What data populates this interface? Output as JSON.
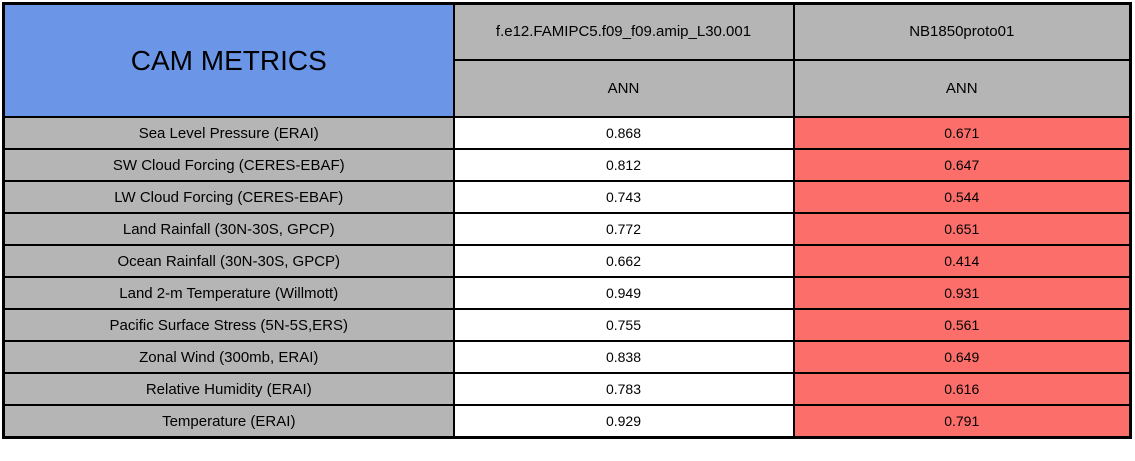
{
  "chart_data": {
    "type": "table",
    "title": "CAM METRICS",
    "column_groups": [
      {
        "run": "f.e12.FAMIPC5.f09_f09.amip_L30.001",
        "season": "ANN"
      },
      {
        "run": "NB1850proto01",
        "season": "ANN"
      }
    ],
    "rows": [
      {
        "metric": "Sea Level Pressure (ERAI)",
        "values": [
          "0.868",
          "0.671"
        ]
      },
      {
        "metric": "SW Cloud Forcing (CERES-EBAF)",
        "values": [
          "0.812",
          "0.647"
        ]
      },
      {
        "metric": "LW Cloud Forcing (CERES-EBAF)",
        "values": [
          "0.743",
          "0.544"
        ]
      },
      {
        "metric": "Land Rainfall (30N-30S, GPCP)",
        "values": [
          "0.772",
          "0.651"
        ]
      },
      {
        "metric": "Ocean Rainfall (30N-30S, GPCP)",
        "values": [
          "0.662",
          "0.414"
        ]
      },
      {
        "metric": "Land 2-m Temperature (Willmott)",
        "values": [
          "0.949",
          "0.931"
        ]
      },
      {
        "metric": "Pacific Surface Stress (5N-5S,ERS)",
        "values": [
          "0.755",
          "0.561"
        ]
      },
      {
        "metric": "Zonal Wind (300mb, ERAI)",
        "values": [
          "0.838",
          "0.649"
        ]
      },
      {
        "metric": "Relative Humidity (ERAI)",
        "values": [
          "0.783",
          "0.616"
        ]
      },
      {
        "metric": "Temperature (ERAI)",
        "values": [
          "0.929",
          "0.791"
        ]
      }
    ],
    "layout": {
      "legend_position": "none",
      "grid": "all-borders"
    }
  },
  "colors": {
    "title_bg": "#6b96e8",
    "header_bg": "#b5b5b5",
    "label_bg": "#b5b5b5",
    "value_base_bg": "#ffffff",
    "value_test_bg": "#fc6e69",
    "border": "#000000"
  }
}
